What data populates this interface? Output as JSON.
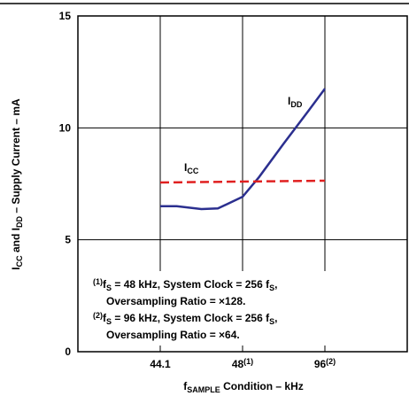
{
  "chart_data": {
    "type": "line",
    "y_label": [
      {
        "t": "I"
      },
      {
        "t": "CC",
        "sub": true
      },
      {
        "t": " and I"
      },
      {
        "t": "DD",
        "sub": true
      },
      {
        "t": " – Supply Current – mA"
      }
    ],
    "x_label": [
      {
        "t": "f"
      },
      {
        "t": "SAMPLE",
        "sub": true
      },
      {
        "t": " Condition – kHz"
      }
    ],
    "xlim": [
      0,
      4
    ],
    "xticks": [
      {
        "value": 1,
        "label": [
          {
            "t": "44.1"
          }
        ]
      },
      {
        "value": 2,
        "label": [
          {
            "t": "48"
          },
          {
            "t": "(1)",
            "sup": true
          }
        ]
      },
      {
        "value": 3,
        "label": [
          {
            "t": "96"
          },
          {
            "t": "(2)",
            "sup": true
          }
        ]
      }
    ],
    "ylim": [
      0,
      15
    ],
    "yticks": [
      0,
      5,
      10,
      15
    ],
    "grid": true,
    "series": [
      {
        "name": [
          {
            "t": "I"
          },
          {
            "t": "DD",
            "sub": true
          }
        ],
        "color": "#2b2f8f",
        "dash": false,
        "x": [
          1,
          1.2,
          1.5,
          1.7,
          2.0,
          2.2,
          2.5,
          2.8,
          3.0
        ],
        "values": [
          6.5,
          6.5,
          6.37,
          6.4,
          6.92,
          7.8,
          9.3,
          10.76,
          11.75
        ]
      },
      {
        "name": [
          {
            "t": "I"
          },
          {
            "t": "CC",
            "sub": true
          }
        ],
        "color": "#e02020",
        "dash": true,
        "x": [
          1,
          3
        ],
        "values": [
          7.56,
          7.64
        ]
      }
    ],
    "notes": [
      [
        {
          "t": "(1)",
          "sup": true
        },
        {
          "t": "f"
        },
        {
          "t": "S",
          "sub": true
        },
        {
          "t": " = 48 kHz, System Clock = 256 f"
        },
        {
          "t": "S",
          "sub": true
        },
        {
          "t": ","
        }
      ],
      [
        {
          "t": "Oversampling Ratio = ×128."
        }
      ],
      [
        {
          "t": "(2)",
          "sup": true
        },
        {
          "t": "f"
        },
        {
          "t": "S",
          "sub": true
        },
        {
          "t": " = 96 kHz, System Clock = 256 f"
        },
        {
          "t": "S",
          "sub": true
        },
        {
          "t": ","
        }
      ],
      [
        {
          "t": "Oversampling Ratio = ×64."
        }
      ]
    ]
  }
}
